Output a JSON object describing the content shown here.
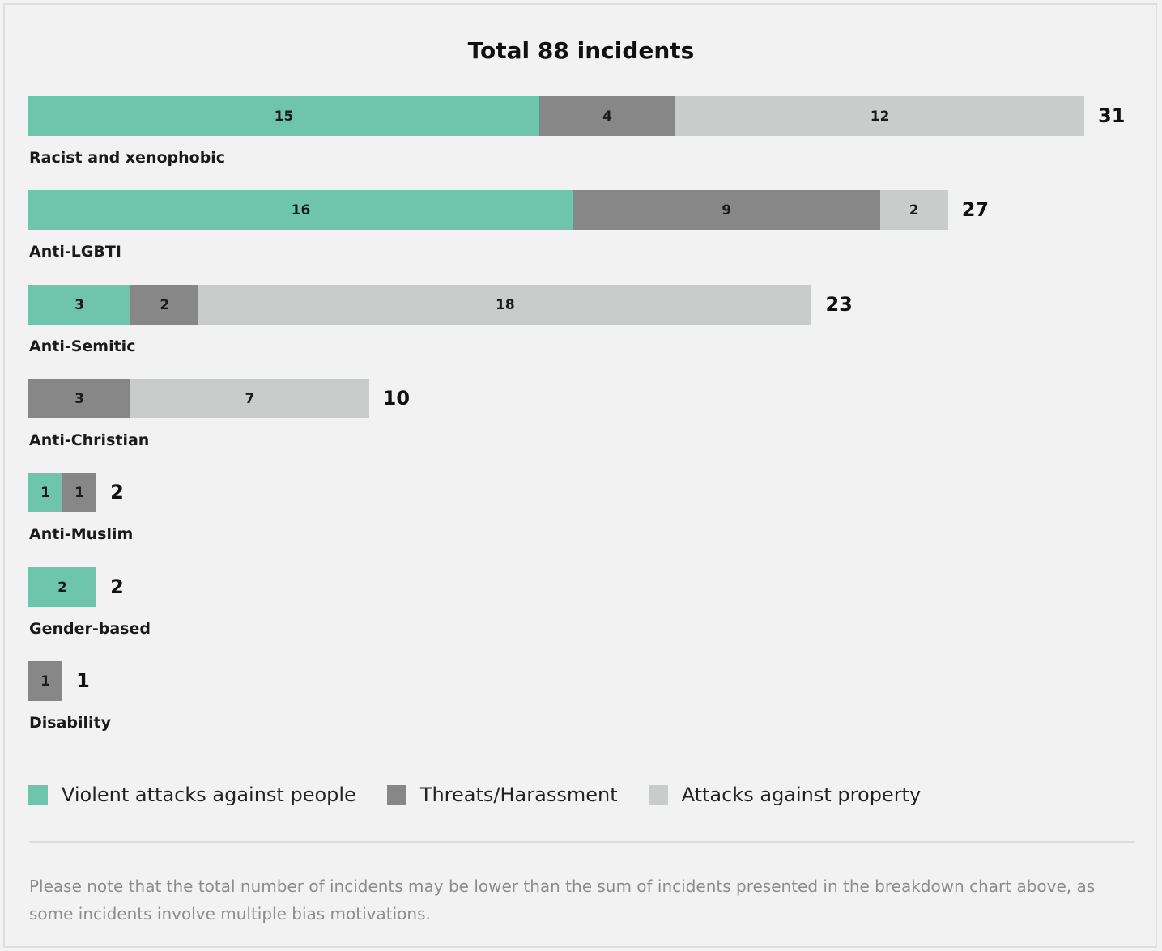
{
  "colors": {
    "violent": "#6fc5ac",
    "threats": "#878787",
    "property": "#c8cccb"
  },
  "chart_data": {
    "type": "bar",
    "orientation": "horizontal",
    "stacked": true,
    "title": "Total 88 incidents",
    "categories": [
      "Racist and xenophobic",
      "Anti-LGBTI",
      "Anti-Semitic",
      "Anti-Christian",
      "Anti-Muslim",
      "Gender-based",
      "Disability"
    ],
    "series": [
      {
        "name": "Violent attacks against people",
        "key": "violent",
        "values": [
          15,
          16,
          3,
          0,
          1,
          2,
          0
        ]
      },
      {
        "name": "Threats/Harassment",
        "key": "threats",
        "values": [
          4,
          9,
          2,
          3,
          1,
          0,
          1
        ]
      },
      {
        "name": "Attacks against property",
        "key": "property",
        "values": [
          12,
          2,
          18,
          7,
          0,
          0,
          0
        ]
      }
    ],
    "totals": [
      31,
      27,
      23,
      10,
      2,
      2,
      1
    ],
    "xlim": [
      0,
      31
    ],
    "grid": false,
    "legend_position": "bottom-left"
  },
  "note": "Please note that the total number of incidents may be lower than the sum of incidents presented in the breakdown chart above, as some incidents involve multiple bias motivations."
}
